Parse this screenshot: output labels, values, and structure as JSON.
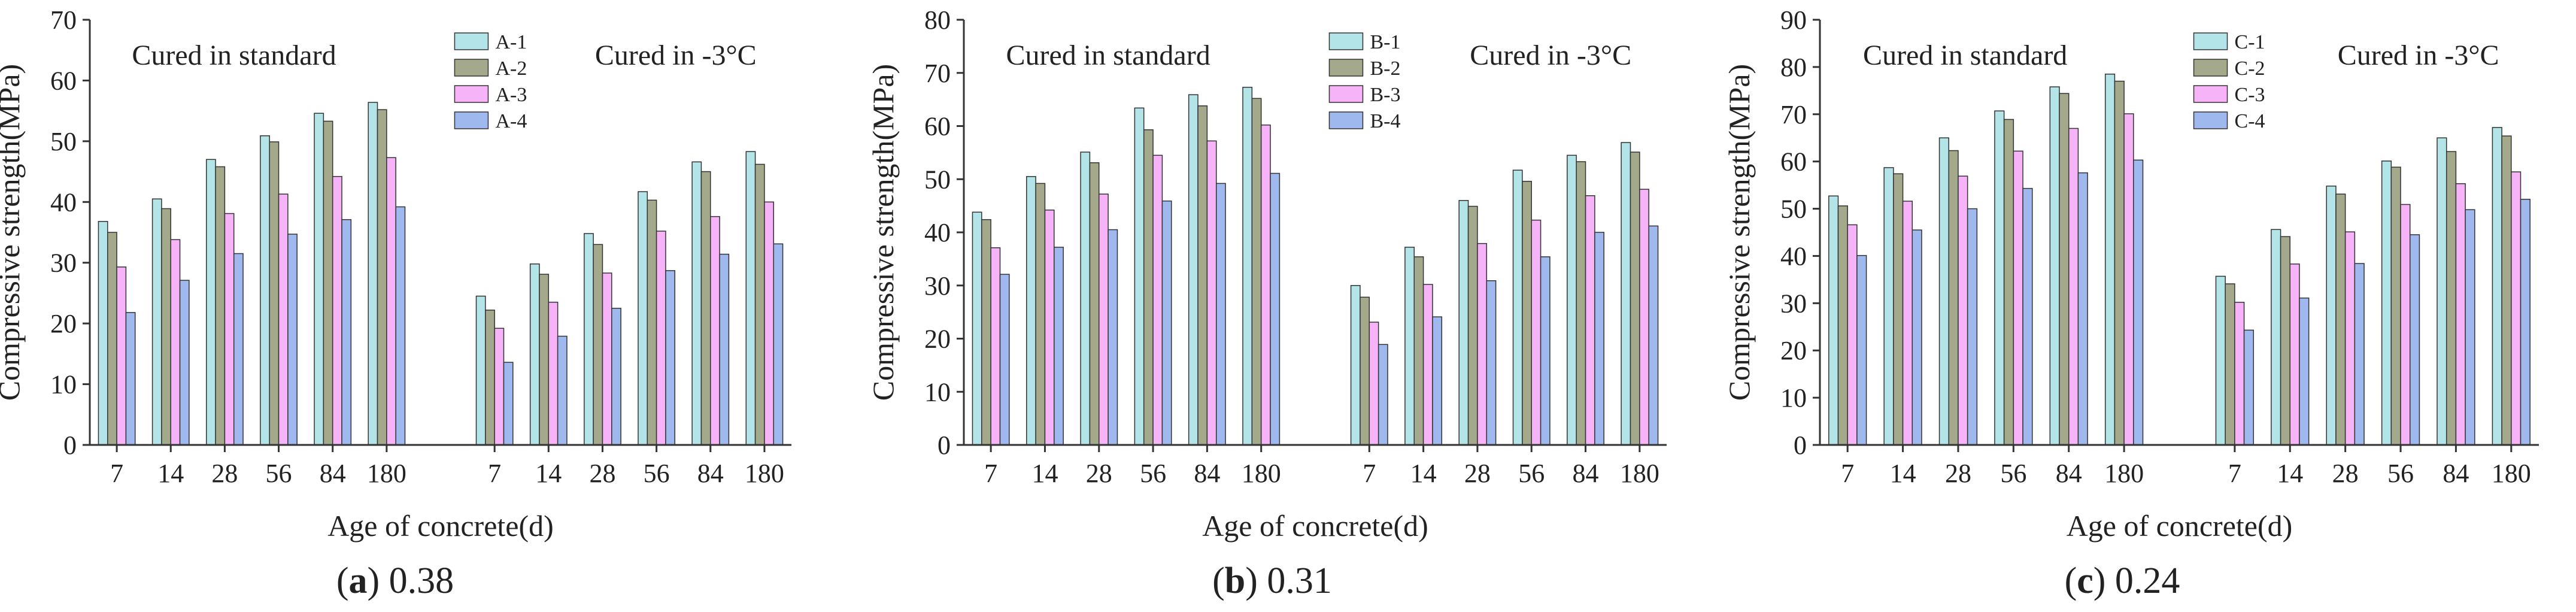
{
  "chart_data": [
    {
      "type": "bar",
      "panel_letter": "a",
      "caption_value": "0.38",
      "ylabel": "Compressive strength(MPa)",
      "xlabel": "Age of concrete(d)",
      "ylim": [
        0,
        70
      ],
      "yticks": [
        "0",
        "10",
        "20",
        "30",
        "40",
        "50",
        "60",
        "70"
      ],
      "ytick_values": [
        0,
        10,
        20,
        30,
        40,
        50,
        60,
        70
      ],
      "categories": [
        "7",
        "14",
        "28",
        "56",
        "84",
        "180",
        "7",
        "14",
        "28",
        "56",
        "84",
        "180"
      ],
      "group_annotations": [
        "Cured in standard",
        "Cured in -3°C"
      ],
      "series": [
        {
          "name": "A-1",
          "color": "#b3e4e8",
          "values": [
            36.8,
            40.5,
            47.0,
            50.9,
            54.6,
            56.4,
            24.5,
            29.8,
            34.8,
            41.7,
            46.6,
            48.3
          ]
        },
        {
          "name": "A-2",
          "color": "#a3a98a",
          "values": [
            35.0,
            38.9,
            45.8,
            49.9,
            53.3,
            55.2,
            22.2,
            28.1,
            33.0,
            40.3,
            45.0,
            46.2
          ]
        },
        {
          "name": "A-3",
          "color": "#f7b3f7",
          "values": [
            29.3,
            33.8,
            38.1,
            41.3,
            44.2,
            47.3,
            19.2,
            23.5,
            28.3,
            35.2,
            37.6,
            40.0
          ]
        },
        {
          "name": "A-4",
          "color": "#9fb8ee",
          "values": [
            21.8,
            27.1,
            31.5,
            34.7,
            37.1,
            39.2,
            13.6,
            17.9,
            22.5,
            28.7,
            31.4,
            33.1
          ]
        }
      ]
    },
    {
      "type": "bar",
      "panel_letter": "b",
      "caption_value": "0.31",
      "ylabel": "Compressive strength(MPa)",
      "xlabel": "Age of concrete(d)",
      "ylim": [
        0,
        80
      ],
      "yticks": [
        "0",
        "10",
        "20",
        "30",
        "40",
        "50",
        "60",
        "70",
        "80"
      ],
      "ytick_values": [
        0,
        10,
        20,
        30,
        40,
        50,
        60,
        70,
        80
      ],
      "categories": [
        "7",
        "14",
        "28",
        "56",
        "84",
        "180",
        "7",
        "14",
        "28",
        "56",
        "84",
        "180"
      ],
      "group_annotations": [
        "Cured in standard",
        "Cured in -3°C"
      ],
      "series": [
        {
          "name": "B-1",
          "color": "#b3e4e8",
          "values": [
            43.8,
            50.5,
            55.1,
            63.4,
            65.9,
            67.3,
            30.0,
            37.2,
            46.0,
            51.7,
            54.5,
            56.9
          ]
        },
        {
          "name": "B-2",
          "color": "#a3a98a",
          "values": [
            42.4,
            49.2,
            53.1,
            59.3,
            63.8,
            65.2,
            27.8,
            35.4,
            44.9,
            49.6,
            53.3,
            55.1
          ]
        },
        {
          "name": "B-3",
          "color": "#f7b3f7",
          "values": [
            37.1,
            44.2,
            47.2,
            54.5,
            57.2,
            60.2,
            23.1,
            30.2,
            37.9,
            42.3,
            46.9,
            48.1
          ]
        },
        {
          "name": "B-4",
          "color": "#9fb8ee",
          "values": [
            32.1,
            37.2,
            40.5,
            45.9,
            49.2,
            51.1,
            18.9,
            24.1,
            30.9,
            35.4,
            40.0,
            41.2
          ]
        }
      ]
    },
    {
      "type": "bar",
      "panel_letter": "c",
      "caption_value": "0.24",
      "ylabel": "Compressive strength(MPa)",
      "xlabel": "Age of concrete(d)",
      "ylim": [
        0,
        90
      ],
      "yticks": [
        "0",
        "10",
        "20",
        "30",
        "40",
        "50",
        "60",
        "70",
        "80",
        "90"
      ],
      "ytick_values": [
        0,
        10,
        20,
        30,
        40,
        50,
        60,
        70,
        80,
        90
      ],
      "categories": [
        "7",
        "14",
        "28",
        "56",
        "84",
        "180",
        "7",
        "14",
        "28",
        "56",
        "84",
        "180"
      ],
      "group_annotations": [
        "Cured in standard",
        "Cured in -3°C"
      ],
      "series": [
        {
          "name": "C-1",
          "color": "#b3e4e8",
          "values": [
            52.7,
            58.7,
            65.0,
            70.7,
            75.8,
            78.5,
            35.7,
            45.6,
            54.8,
            60.1,
            65.0,
            67.2
          ]
        },
        {
          "name": "C-2",
          "color": "#a3a98a",
          "values": [
            50.6,
            57.4,
            62.3,
            68.9,
            74.4,
            77.0,
            34.1,
            44.1,
            53.1,
            58.8,
            62.1,
            65.4
          ]
        },
        {
          "name": "C-3",
          "color": "#f7b3f7",
          "values": [
            46.6,
            51.6,
            56.9,
            62.2,
            67.0,
            70.1,
            30.2,
            38.3,
            45.1,
            50.9,
            55.3,
            57.8
          ]
        },
        {
          "name": "C-4",
          "color": "#9fb8ee",
          "values": [
            40.1,
            45.5,
            50.0,
            54.3,
            57.6,
            60.3,
            24.3,
            31.1,
            38.4,
            44.5,
            49.8,
            52.0
          ]
        }
      ]
    }
  ]
}
